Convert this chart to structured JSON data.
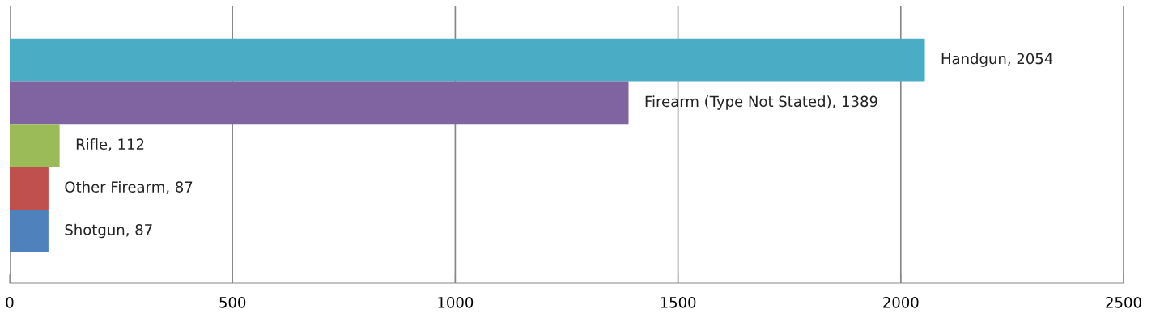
{
  "chart_data": {
    "type": "bar",
    "orientation": "horizontal",
    "categories": [
      null,
      null,
      null,
      null,
      null
    ],
    "values": [
      2054,
      1389,
      112,
      87,
      87
    ],
    "colors": [
      "#4bacc6",
      "#8064a2",
      "#9bbb59",
      "#c0504d",
      "#4f81bd"
    ],
    "value_labels": [
      "Handgun, 2054",
      "Firearm (Type Not Stated), 1389",
      "Rifle, 112",
      "Other Firearm, 87",
      "Shotgun, 87"
    ],
    "xlim": [
      0,
      2500
    ],
    "xticks": [
      0,
      500,
      1000,
      1500,
      2000,
      2500
    ],
    "grid": "x",
    "tick_labels": "x"
  }
}
